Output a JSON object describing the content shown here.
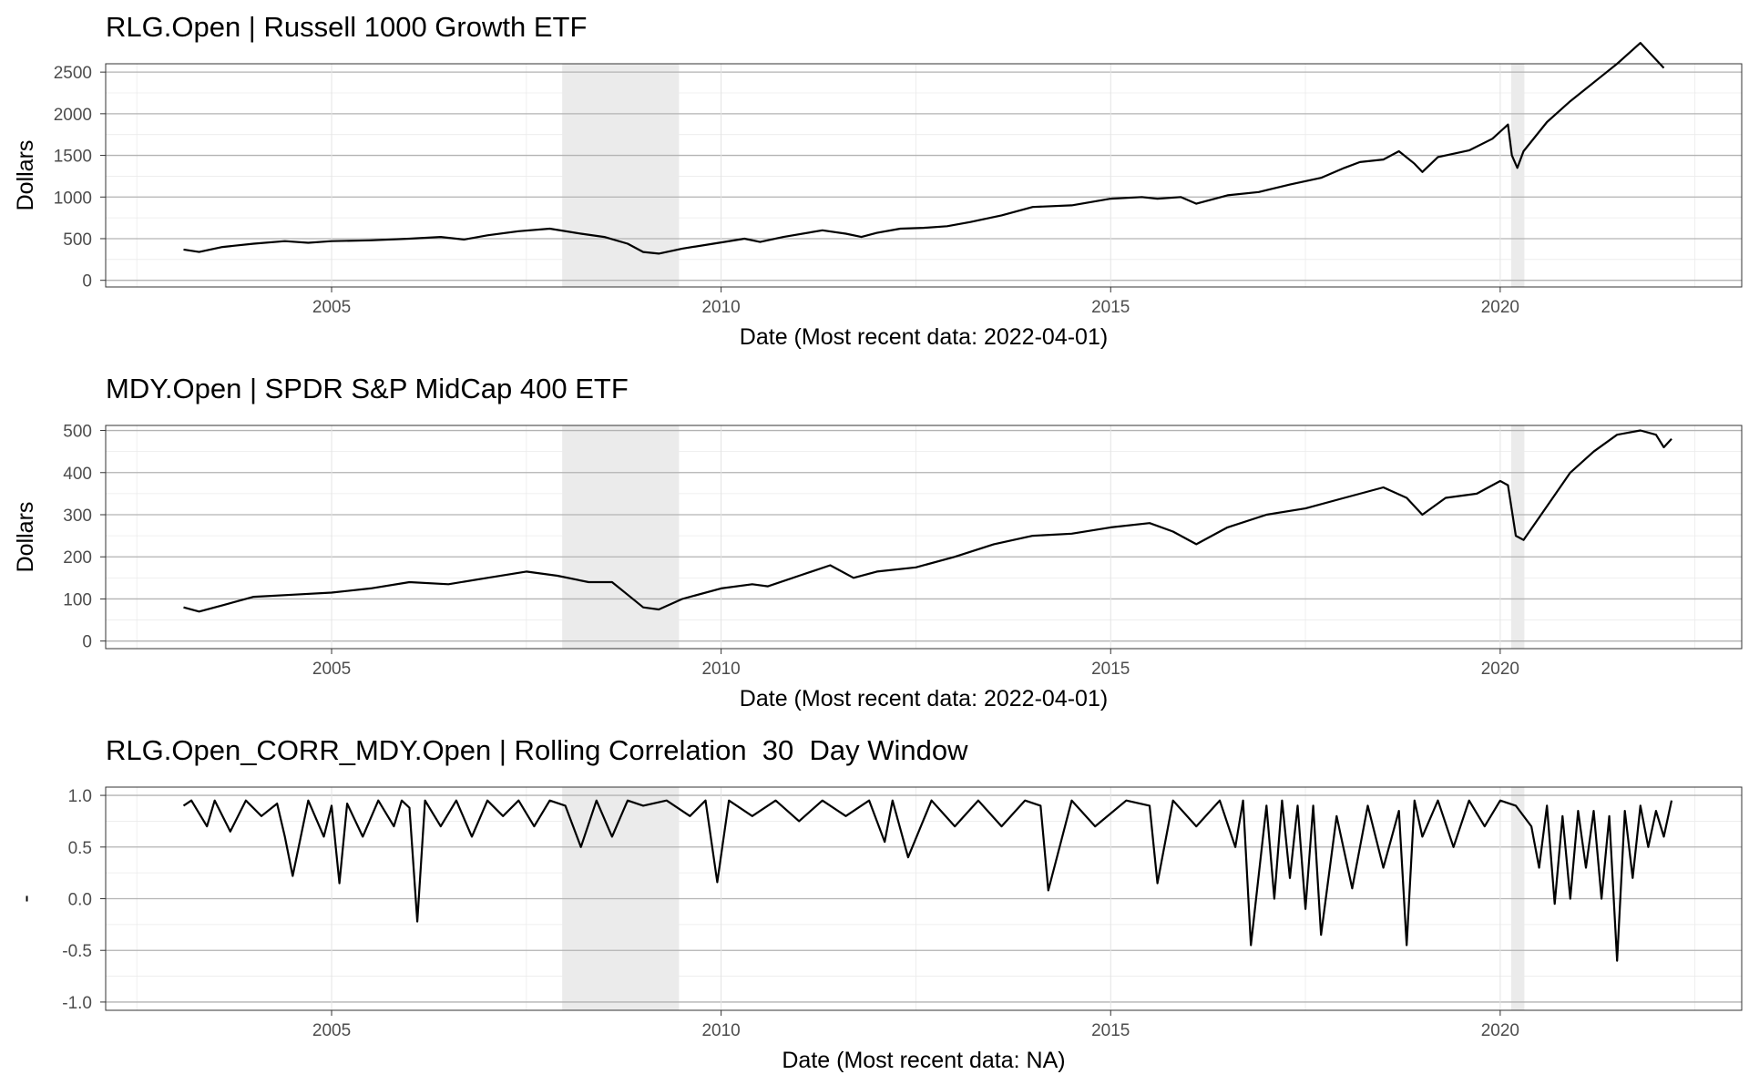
{
  "chart_data": [
    {
      "type": "line",
      "title": "RLG.Open | Russell 1000 Growth ETF",
      "xlabel": "Date (Most recent data: 2022-04-01)",
      "ylabel": "Dollars",
      "xlim": [
        2002.1,
        2023.1
      ],
      "ylim": [
        -80,
        2600
      ],
      "y_ticks": [
        0,
        500,
        1000,
        1500,
        2000,
        2500
      ],
      "y_tick_labels": [
        "0",
        "500",
        "1000",
        "1500",
        "2000",
        "2500"
      ],
      "x_ticks": [
        2005,
        2010,
        2015,
        2020
      ],
      "x_tick_labels": [
        "2005",
        "2010",
        "2015",
        "2020"
      ],
      "recessions": [
        [
          2007.96,
          2009.46
        ],
        [
          2020.14,
          2020.31
        ]
      ],
      "grid": true,
      "line_color": "#000000",
      "recession_color": "#ebebeb",
      "series": [
        {
          "x": [
            2003.1,
            2003.3,
            2003.6,
            2004.0,
            2004.4,
            2004.7,
            2005.0,
            2005.5,
            2006.0,
            2006.4,
            2006.7,
            2007.0,
            2007.4,
            2007.8,
            2008.2,
            2008.5,
            2008.8,
            2009.0,
            2009.2,
            2009.5,
            2009.9,
            2010.3,
            2010.5,
            2010.8,
            2011.3,
            2011.6,
            2011.8,
            2012.0,
            2012.3,
            2012.6,
            2012.9,
            2013.2,
            2013.6,
            2014.0,
            2014.5,
            2015.0,
            2015.4,
            2015.6,
            2015.9,
            2016.1,
            2016.5,
            2016.9,
            2017.3,
            2017.7,
            2018.0,
            2018.2,
            2018.5,
            2018.7,
            2018.9,
            2019.0,
            2019.2,
            2019.6,
            2019.9,
            2020.1,
            2020.15,
            2020.22,
            2020.3,
            2020.6,
            2020.9,
            2021.1,
            2021.3,
            2021.5,
            2021.8,
            2022.1
          ],
          "y": [
            370,
            340,
            400,
            440,
            470,
            450,
            470,
            480,
            500,
            520,
            490,
            540,
            590,
            620,
            560,
            520,
            440,
            340,
            320,
            380,
            440,
            500,
            460,
            520,
            600,
            560,
            520,
            570,
            620,
            630,
            650,
            700,
            780,
            880,
            900,
            980,
            1000,
            980,
            1000,
            920,
            1020,
            1060,
            1150,
            1230,
            1350,
            1420,
            1450,
            1550,
            1400,
            1300,
            1480,
            1560,
            1700,
            1870,
            1500,
            1350,
            1550,
            1900,
            2150,
            2300,
            2450,
            2600,
            2850,
            2550
          ]
        }
      ]
    },
    {
      "type": "line",
      "title": "MDY.Open | SPDR S&P MidCap 400 ETF",
      "xlabel": "Date (Most recent data: 2022-04-01)",
      "ylabel": "Dollars",
      "xlim": [
        2002.1,
        2023.1
      ],
      "ylim": [
        -18,
        512
      ],
      "y_ticks": [
        0,
        100,
        200,
        300,
        400,
        500
      ],
      "y_tick_labels": [
        "0",
        "100",
        "200",
        "300",
        "400",
        "500"
      ],
      "x_ticks": [
        2005,
        2010,
        2015,
        2020
      ],
      "x_tick_labels": [
        "2005",
        "2010",
        "2015",
        "2020"
      ],
      "recessions": [
        [
          2007.96,
          2009.46
        ],
        [
          2020.14,
          2020.31
        ]
      ],
      "grid": true,
      "line_color": "#000000",
      "recession_color": "#ebebeb",
      "series": [
        {
          "x": [
            2003.1,
            2003.3,
            2003.6,
            2004.0,
            2004.5,
            2005.0,
            2005.5,
            2006.0,
            2006.5,
            2007.0,
            2007.5,
            2007.9,
            2008.3,
            2008.6,
            2008.8,
            2009.0,
            2009.2,
            2009.5,
            2010.0,
            2010.4,
            2010.6,
            2011.0,
            2011.4,
            2011.7,
            2012.0,
            2012.5,
            2013.0,
            2013.5,
            2014.0,
            2014.5,
            2015.0,
            2015.5,
            2015.8,
            2016.1,
            2016.5,
            2017.0,
            2017.5,
            2018.0,
            2018.5,
            2018.8,
            2019.0,
            2019.3,
            2019.7,
            2020.0,
            2020.1,
            2020.2,
            2020.3,
            2020.6,
            2020.9,
            2021.2,
            2021.5,
            2021.8,
            2022.0,
            2022.1,
            2022.2
          ],
          "y": [
            80,
            70,
            85,
            105,
            110,
            115,
            125,
            140,
            135,
            150,
            165,
            155,
            140,
            140,
            110,
            80,
            75,
            100,
            125,
            135,
            130,
            155,
            180,
            150,
            165,
            175,
            200,
            230,
            250,
            255,
            270,
            280,
            260,
            230,
            270,
            300,
            315,
            340,
            365,
            340,
            300,
            340,
            350,
            380,
            370,
            250,
            240,
            320,
            400,
            450,
            490,
            500,
            490,
            460,
            480
          ]
        }
      ]
    },
    {
      "type": "line",
      "title": "RLG.Open_CORR_MDY.Open | Rolling Correlation  30  Day Window",
      "xlabel": "Date (Most recent data: NA)",
      "ylabel": "-",
      "xlim": [
        2002.1,
        2023.1
      ],
      "ylim": [
        -1.08,
        1.08
      ],
      "y_ticks": [
        -1.0,
        -0.5,
        0.0,
        0.5,
        1.0
      ],
      "y_tick_labels": [
        "-1.0",
        "-0.5",
        "0.0",
        "0.5",
        "1.0"
      ],
      "x_ticks": [
        2005,
        2010,
        2015,
        2020
      ],
      "x_tick_labels": [
        "2005",
        "2010",
        "2015",
        "2020"
      ],
      "recessions": [
        [
          2007.96,
          2009.46
        ],
        [
          2020.14,
          2020.31
        ]
      ],
      "grid": true,
      "line_color": "#000000",
      "recession_color": "#ebebeb",
      "series": [
        {
          "x": [
            2003.1,
            2003.2,
            2003.4,
            2003.5,
            2003.7,
            2003.9,
            2004.1,
            2004.3,
            2004.4,
            2004.5,
            2004.7,
            2004.9,
            2005.0,
            2005.1,
            2005.2,
            2005.4,
            2005.6,
            2005.8,
            2005.9,
            2006.0,
            2006.1,
            2006.2,
            2006.4,
            2006.6,
            2006.8,
            2007.0,
            2007.2,
            2007.4,
            2007.6,
            2007.8,
            2008.0,
            2008.2,
            2008.4,
            2008.6,
            2008.8,
            2009.0,
            2009.3,
            2009.6,
            2009.8,
            2009.95,
            2010.1,
            2010.4,
            2010.7,
            2011.0,
            2011.3,
            2011.6,
            2011.9,
            2012.1,
            2012.2,
            2012.4,
            2012.7,
            2013.0,
            2013.3,
            2013.6,
            2013.9,
            2014.1,
            2014.2,
            2014.5,
            2014.8,
            2015.2,
            2015.5,
            2015.6,
            2015.8,
            2016.1,
            2016.4,
            2016.6,
            2016.7,
            2016.8,
            2017.0,
            2017.1,
            2017.2,
            2017.3,
            2017.4,
            2017.5,
            2017.6,
            2017.7,
            2017.9,
            2018.1,
            2018.3,
            2018.5,
            2018.7,
            2018.8,
            2018.9,
            2019.0,
            2019.2,
            2019.4,
            2019.6,
            2019.8,
            2020.0,
            2020.2,
            2020.4,
            2020.5,
            2020.6,
            2020.7,
            2020.8,
            2020.9,
            2021.0,
            2021.1,
            2021.2,
            2021.3,
            2021.4,
            2021.5,
            2021.6,
            2021.7,
            2021.8,
            2021.9,
            2022.0,
            2022.1,
            2022.2
          ],
          "y": [
            0.9,
            0.95,
            0.7,
            0.95,
            0.65,
            0.95,
            0.8,
            0.92,
            0.6,
            0.22,
            0.95,
            0.6,
            0.9,
            0.15,
            0.92,
            0.6,
            0.95,
            0.7,
            0.95,
            0.88,
            -0.22,
            0.95,
            0.7,
            0.95,
            0.6,
            0.95,
            0.8,
            0.95,
            0.7,
            0.95,
            0.9,
            0.5,
            0.95,
            0.6,
            0.95,
            0.9,
            0.95,
            0.8,
            0.95,
            0.16,
            0.95,
            0.8,
            0.95,
            0.75,
            0.95,
            0.8,
            0.95,
            0.55,
            0.95,
            0.4,
            0.95,
            0.7,
            0.95,
            0.7,
            0.95,
            0.9,
            0.08,
            0.95,
            0.7,
            0.95,
            0.9,
            0.15,
            0.95,
            0.7,
            0.95,
            0.5,
            0.95,
            -0.45,
            0.9,
            0.0,
            0.95,
            0.2,
            0.9,
            -0.1,
            0.9,
            -0.35,
            0.8,
            0.1,
            0.9,
            0.3,
            0.85,
            -0.45,
            0.95,
            0.6,
            0.95,
            0.5,
            0.95,
            0.7,
            0.95,
            0.9,
            0.7,
            0.3,
            0.9,
            -0.05,
            0.8,
            0.0,
            0.85,
            0.3,
            0.85,
            0.0,
            0.8,
            -0.6,
            0.85,
            0.2,
            0.9,
            0.5,
            0.85,
            0.6,
            0.95
          ]
        }
      ]
    }
  ]
}
